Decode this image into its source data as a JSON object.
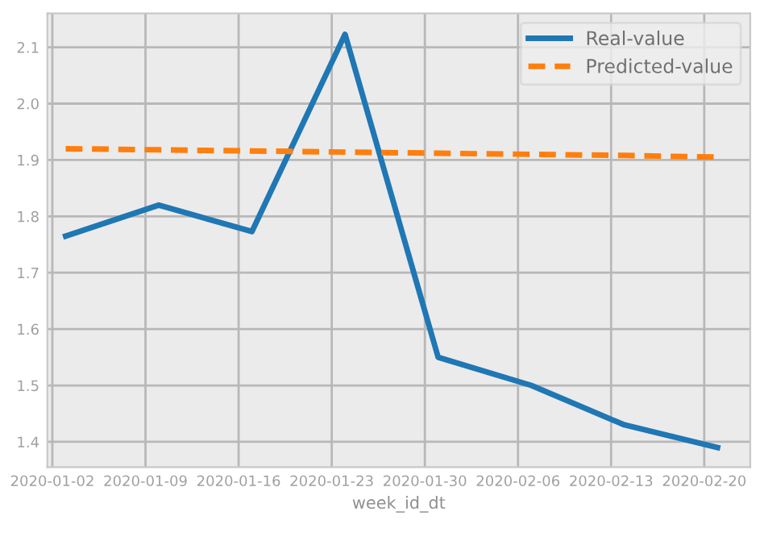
{
  "chart_data": {
    "type": "line",
    "xlabel": "week_id_dt",
    "x": [
      "2020-01-03",
      "2020-01-10",
      "2020-01-17",
      "2020-01-24",
      "2020-01-31",
      "2020-02-07",
      "2020-02-14",
      "2020-02-21"
    ],
    "series": [
      {
        "name": "Real-value",
        "color": "#1f77b4",
        "line_style": "solid",
        "values": [
          1.765,
          1.82,
          1.773,
          2.123,
          1.55,
          1.5,
          1.43,
          1.39
        ]
      },
      {
        "name": "Predicted-value",
        "color": "#ff7f0e",
        "line_style": "dashed",
        "values": [
          1.92,
          1.918,
          1.916,
          1.914,
          1.912,
          1.91,
          1.908,
          1.905
        ]
      }
    ],
    "xlim": [
      "2020-01-01T15:00",
      "2020-02-23T11:00"
    ],
    "xticks": [
      {
        "value": "2020-01-02",
        "label": "2020-01-02"
      },
      {
        "value": "2020-01-09",
        "label": "2020-01-09"
      },
      {
        "value": "2020-01-16",
        "label": "2020-01-16"
      },
      {
        "value": "2020-01-23",
        "label": "2020-01-23"
      },
      {
        "value": "2020-01-30",
        "label": "2020-01-30"
      },
      {
        "value": "2020-02-06",
        "label": "2020-02-06"
      },
      {
        "value": "2020-02-13",
        "label": "2020-02-13"
      },
      {
        "value": "2020-02-20",
        "label": "2020-02-20"
      }
    ],
    "ylim": [
      1.355,
      2.16
    ],
    "yticks": [
      1.4,
      1.5,
      1.6,
      1.7,
      1.8,
      1.9,
      {
        "value": 2,
        "label": "2.0"
      },
      2.1
    ],
    "grid": true,
    "legend": "top right"
  }
}
